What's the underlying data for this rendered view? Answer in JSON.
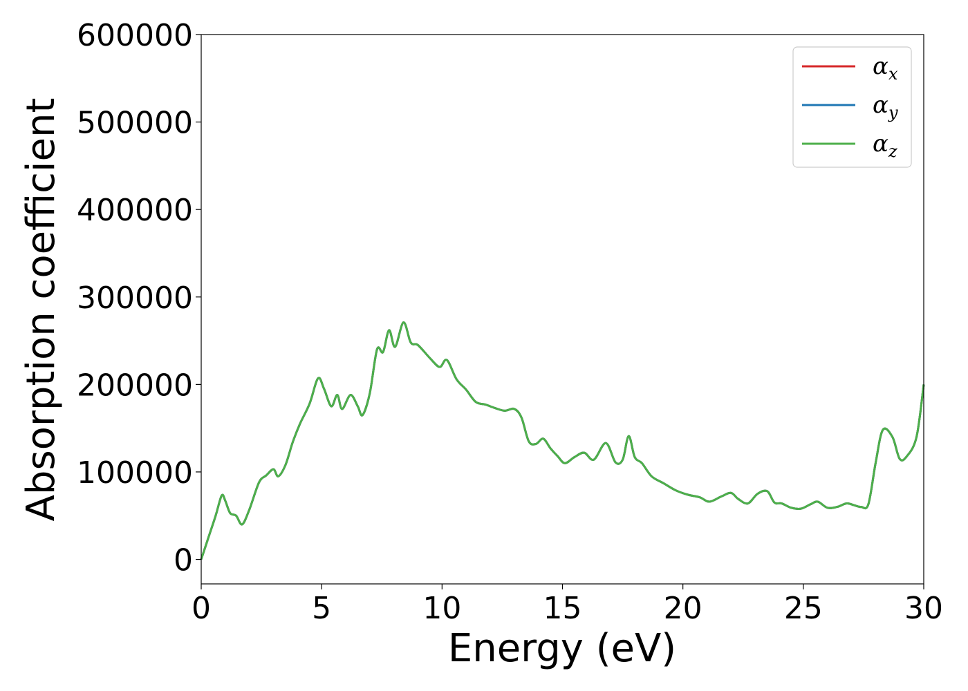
{
  "chart_data": {
    "type": "line",
    "xlabel": "Energy (eV)",
    "ylabel": "Absorption coefficient",
    "xlim": [
      0,
      30
    ],
    "ylim": [
      -28000,
      600000
    ],
    "xticks": [
      0,
      5,
      10,
      15,
      20,
      25,
      30
    ],
    "xtick_labels": [
      "0",
      "5",
      "10",
      "15",
      "20",
      "25",
      "30"
    ],
    "yticks": [
      0,
      100000,
      200000,
      300000,
      400000,
      500000,
      600000
    ],
    "ytick_labels": [
      "0",
      "100000",
      "200000",
      "300000",
      "400000",
      "500000",
      "600000"
    ],
    "grid": false,
    "legend_position": "upper right",
    "series": [
      {
        "name": "α_x",
        "symbol": "α",
        "subscript": "x",
        "color": "#d62728",
        "x": [
          0,
          0.3,
          0.6,
          0.85,
          1.0,
          1.2,
          1.45,
          1.7,
          2.0,
          2.4,
          2.7,
          3.0,
          3.2,
          3.5,
          3.8,
          4.1,
          4.5,
          4.85,
          5.1,
          5.4,
          5.65,
          5.85,
          6.2,
          6.5,
          6.7,
          7.0,
          7.3,
          7.55,
          7.8,
          8.05,
          8.4,
          8.7,
          9.0,
          9.5,
          9.9,
          10.2,
          10.6,
          11.0,
          11.4,
          11.8,
          12.2,
          12.6,
          13.0,
          13.3,
          13.6,
          13.9,
          14.2,
          14.5,
          14.8,
          15.1,
          15.5,
          15.9,
          16.3,
          16.8,
          17.2,
          17.5,
          17.75,
          18.0,
          18.3,
          18.7,
          19.2,
          19.7,
          20.2,
          20.7,
          21.1,
          21.6,
          22.0,
          22.3,
          22.7,
          23.1,
          23.5,
          23.8,
          24.1,
          24.5,
          24.9,
          25.3,
          25.6,
          26.0,
          26.4,
          26.8,
          27.1,
          27.4,
          27.7,
          28.0,
          28.3,
          28.7,
          29.0,
          29.3,
          29.7,
          30.0
        ],
        "y": [
          0,
          25000,
          50000,
          73000,
          67000,
          53000,
          50000,
          40000,
          57000,
          88000,
          96000,
          103000,
          95000,
          108000,
          134000,
          155000,
          178000,
          207000,
          195000,
          175000,
          188000,
          172000,
          188000,
          175000,
          165000,
          190000,
          240000,
          237000,
          262000,
          243000,
          271000,
          248000,
          245000,
          230000,
          220000,
          228000,
          206000,
          194000,
          180000,
          177000,
          173000,
          170000,
          172000,
          162000,
          135000,
          132000,
          138000,
          127000,
          118000,
          110000,
          117000,
          122000,
          114000,
          133000,
          111000,
          114000,
          141000,
          117000,
          110000,
          95000,
          87000,
          79000,
          74000,
          71000,
          66000,
          72000,
          76000,
          69000,
          64000,
          75000,
          78000,
          65000,
          64000,
          59000,
          58000,
          63000,
          66000,
          59000,
          60000,
          64000,
          62000,
          60000,
          63000,
          110000,
          148000,
          140000,
          115000,
          118000,
          140000,
          200000
        ]
      },
      {
        "name": "α_y",
        "symbol": "α",
        "subscript": "y",
        "color": "#1f77b4",
        "x": [
          0,
          0.3,
          0.6,
          0.85,
          1.0,
          1.2,
          1.45,
          1.7,
          2.0,
          2.4,
          2.7,
          3.0,
          3.2,
          3.5,
          3.8,
          4.1,
          4.5,
          4.85,
          5.1,
          5.4,
          5.65,
          5.85,
          6.2,
          6.5,
          6.7,
          7.0,
          7.3,
          7.55,
          7.8,
          8.05,
          8.4,
          8.7,
          9.0,
          9.5,
          9.9,
          10.2,
          10.6,
          11.0,
          11.4,
          11.8,
          12.2,
          12.6,
          13.0,
          13.3,
          13.6,
          13.9,
          14.2,
          14.5,
          14.8,
          15.1,
          15.5,
          15.9,
          16.3,
          16.8,
          17.2,
          17.5,
          17.75,
          18.0,
          18.3,
          18.7,
          19.2,
          19.7,
          20.2,
          20.7,
          21.1,
          21.6,
          22.0,
          22.3,
          22.7,
          23.1,
          23.5,
          23.8,
          24.1,
          24.5,
          24.9,
          25.3,
          25.6,
          26.0,
          26.4,
          26.8,
          27.1,
          27.4,
          27.7,
          28.0,
          28.3,
          28.7,
          29.0,
          29.3,
          29.7,
          30.0
        ],
        "y": [
          0,
          25000,
          50000,
          73000,
          67000,
          53000,
          50000,
          40000,
          57000,
          88000,
          96000,
          103000,
          95000,
          108000,
          134000,
          155000,
          178000,
          207000,
          195000,
          175000,
          188000,
          172000,
          188000,
          175000,
          165000,
          190000,
          240000,
          237000,
          262000,
          243000,
          271000,
          248000,
          245000,
          230000,
          220000,
          228000,
          206000,
          194000,
          180000,
          177000,
          173000,
          170000,
          172000,
          162000,
          135000,
          132000,
          138000,
          127000,
          118000,
          110000,
          117000,
          122000,
          114000,
          133000,
          111000,
          114000,
          141000,
          117000,
          110000,
          95000,
          87000,
          79000,
          74000,
          71000,
          66000,
          72000,
          76000,
          69000,
          64000,
          75000,
          78000,
          65000,
          64000,
          59000,
          58000,
          63000,
          66000,
          59000,
          60000,
          64000,
          62000,
          60000,
          63000,
          110000,
          148000,
          140000,
          115000,
          118000,
          140000,
          200000
        ]
      },
      {
        "name": "α_z",
        "symbol": "α",
        "subscript": "z",
        "color": "#4daf4a",
        "x": [
          0,
          0.3,
          0.6,
          0.85,
          1.0,
          1.2,
          1.45,
          1.7,
          2.0,
          2.4,
          2.7,
          3.0,
          3.2,
          3.5,
          3.8,
          4.1,
          4.5,
          4.85,
          5.1,
          5.4,
          5.65,
          5.85,
          6.2,
          6.5,
          6.7,
          7.0,
          7.3,
          7.55,
          7.8,
          8.05,
          8.4,
          8.7,
          9.0,
          9.5,
          9.9,
          10.2,
          10.6,
          11.0,
          11.4,
          11.8,
          12.2,
          12.6,
          13.0,
          13.3,
          13.6,
          13.9,
          14.2,
          14.5,
          14.8,
          15.1,
          15.5,
          15.9,
          16.3,
          16.8,
          17.2,
          17.5,
          17.75,
          18.0,
          18.3,
          18.7,
          19.2,
          19.7,
          20.2,
          20.7,
          21.1,
          21.6,
          22.0,
          22.3,
          22.7,
          23.1,
          23.5,
          23.8,
          24.1,
          24.5,
          24.9,
          25.3,
          25.6,
          26.0,
          26.4,
          26.8,
          27.1,
          27.4,
          27.7,
          28.0,
          28.3,
          28.7,
          29.0,
          29.3,
          29.7,
          30.0
        ],
        "y": [
          0,
          25000,
          50000,
          73000,
          67000,
          53000,
          50000,
          40000,
          57000,
          88000,
          96000,
          103000,
          95000,
          108000,
          134000,
          155000,
          178000,
          207000,
          195000,
          175000,
          188000,
          172000,
          188000,
          175000,
          165000,
          190000,
          240000,
          237000,
          262000,
          243000,
          271000,
          248000,
          245000,
          230000,
          220000,
          228000,
          206000,
          194000,
          180000,
          177000,
          173000,
          170000,
          172000,
          162000,
          135000,
          132000,
          138000,
          127000,
          118000,
          110000,
          117000,
          122000,
          114000,
          133000,
          111000,
          114000,
          141000,
          117000,
          110000,
          95000,
          87000,
          79000,
          74000,
          71000,
          66000,
          72000,
          76000,
          69000,
          64000,
          75000,
          78000,
          65000,
          64000,
          59000,
          58000,
          63000,
          66000,
          59000,
          60000,
          64000,
          62000,
          60000,
          63000,
          110000,
          148000,
          140000,
          115000,
          118000,
          140000,
          200000
        ]
      }
    ]
  }
}
